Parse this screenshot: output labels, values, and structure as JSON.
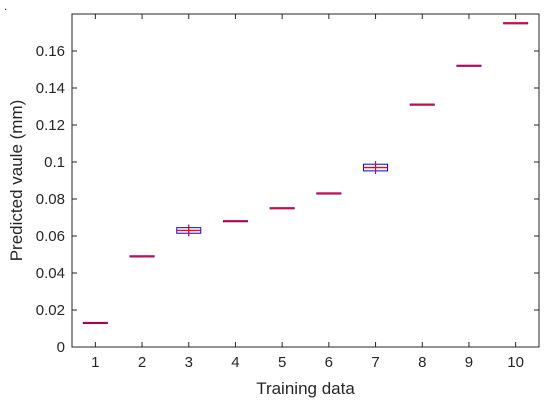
{
  "corner_mark": ".",
  "chart_data": {
    "type": "box",
    "title": "",
    "xlabel": "Training data",
    "ylabel": "Predicted vaule (mm)",
    "categories": [
      "1",
      "2",
      "3",
      "4",
      "5",
      "6",
      "7",
      "8",
      "9",
      "10"
    ],
    "values": [
      0.013,
      0.049,
      0.063,
      0.068,
      0.075,
      0.083,
      0.097,
      0.131,
      0.152,
      0.175
    ],
    "spread": [
      0.0003,
      0.0003,
      0.0015,
      0.0003,
      0.0003,
      0.0003,
      0.0018,
      0.0003,
      0.0003,
      0.0003
    ],
    "xlim": [
      0.5,
      10.5
    ],
    "ylim": [
      0,
      0.18
    ],
    "yticks": [
      0,
      0.02,
      0.04,
      0.06,
      0.08,
      0.1,
      0.12,
      0.14,
      0.16
    ],
    "ytick_labels": [
      "0",
      "0.02",
      "0.04",
      "0.06",
      "0.08",
      "0.1",
      "0.12",
      "0.14",
      "0.16"
    ],
    "grid": false,
    "colors": {
      "median": "#ff0000",
      "box": "#0000ff",
      "axis": "#262626"
    }
  }
}
